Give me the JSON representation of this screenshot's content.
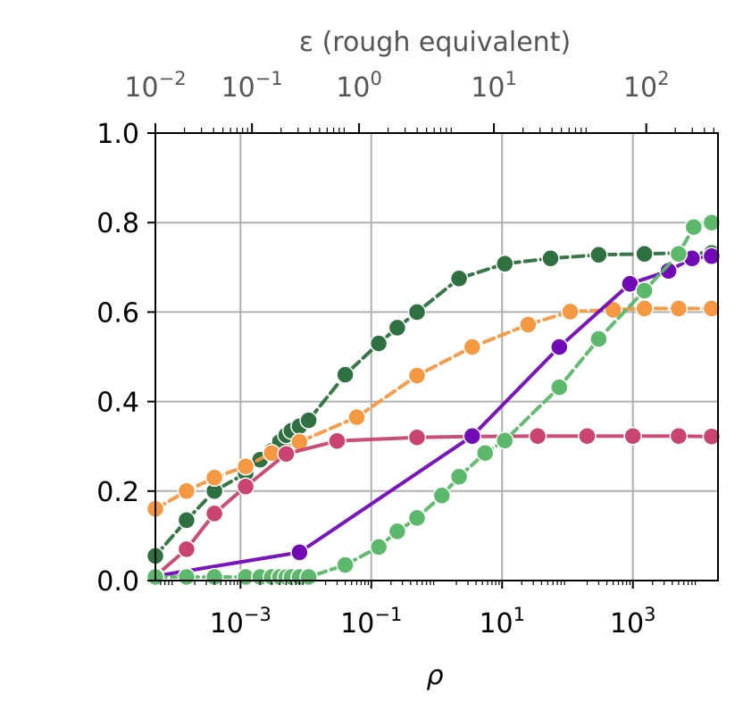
{
  "chart_data": {
    "type": "line",
    "xlabel": "ρ",
    "top_xlabel": "ε (rough equivalent)",
    "ylabel": "",
    "x_scale": "log",
    "xlim": [
      5e-05,
      20000
    ],
    "ylim": [
      0,
      1
    ],
    "x_ticks": [
      {
        "value": 0.001,
        "base": "10",
        "exp": "−3"
      },
      {
        "value": 0.1,
        "base": "10",
        "exp": "−1"
      },
      {
        "value": 10,
        "base": "10",
        "exp": "1"
      },
      {
        "value": 1000,
        "base": "10",
        "exp": "3"
      }
    ],
    "y_ticks": [
      {
        "value": 0.0,
        "label": "0.0"
      },
      {
        "value": 0.2,
        "label": "0.2"
      },
      {
        "value": 0.4,
        "label": "0.4"
      },
      {
        "value": 0.6,
        "label": "0.6"
      },
      {
        "value": 0.8,
        "label": "0.8"
      },
      {
        "value": 1.0,
        "label": "1.0"
      }
    ],
    "top_ticks": [
      {
        "value": 5e-05,
        "base": "10",
        "exp": "−2"
      },
      {
        "value": 0.0015,
        "base": "10",
        "exp": "−1"
      },
      {
        "value": 0.065,
        "base": "10",
        "exp": "0"
      },
      {
        "value": 7.5,
        "base": "10",
        "exp": "1"
      },
      {
        "value": 1600,
        "base": "10",
        "exp": "2"
      }
    ],
    "grid": true,
    "series": [
      {
        "color": "#2e7040",
        "line_style": "dashed",
        "points": [
          [
            5e-05,
            0.055
          ],
          [
            0.00015,
            0.135
          ],
          [
            0.0004,
            0.2
          ],
          [
            0.0012,
            0.24
          ],
          [
            0.002,
            0.27
          ],
          [
            0.003,
            0.29
          ],
          [
            0.004,
            0.31
          ],
          [
            0.005,
            0.325
          ],
          [
            0.006,
            0.335
          ],
          [
            0.008,
            0.345
          ],
          [
            0.011,
            0.358
          ],
          [
            0.04,
            0.46
          ],
          [
            0.13,
            0.53
          ],
          [
            0.25,
            0.565
          ],
          [
            0.5,
            0.6
          ],
          [
            2.2,
            0.675
          ],
          [
            11,
            0.708
          ],
          [
            55,
            0.72
          ],
          [
            300,
            0.728
          ],
          [
            1500,
            0.73
          ],
          [
            5000,
            0.732
          ],
          [
            16000,
            0.732
          ]
        ]
      },
      {
        "color": "#f59842",
        "line_style": "dashed",
        "points": [
          [
            5e-05,
            0.16
          ],
          [
            0.00015,
            0.2
          ],
          [
            0.0004,
            0.23
          ],
          [
            0.0012,
            0.255
          ],
          [
            0.003,
            0.285
          ],
          [
            0.008,
            0.31
          ],
          [
            0.06,
            0.365
          ],
          [
            0.5,
            0.458
          ],
          [
            3.5,
            0.522
          ],
          [
            25,
            0.572
          ],
          [
            110,
            0.601
          ],
          [
            500,
            0.605
          ],
          [
            1500,
            0.608
          ],
          [
            5000,
            0.608
          ],
          [
            16000,
            0.608
          ]
        ]
      },
      {
        "color": "#c94470",
        "line_style": "solid",
        "points": [
          [
            5e-05,
            0.01
          ],
          [
            0.00015,
            0.07
          ],
          [
            0.0004,
            0.15
          ],
          [
            0.0012,
            0.21
          ],
          [
            0.005,
            0.283
          ],
          [
            0.03,
            0.312
          ],
          [
            0.5,
            0.32
          ],
          [
            3.5,
            0.322
          ],
          [
            35,
            0.323
          ],
          [
            200,
            0.323
          ],
          [
            1000,
            0.323
          ],
          [
            5000,
            0.323
          ],
          [
            16000,
            0.322
          ]
        ]
      },
      {
        "color": "#7209b7",
        "line_style": "solid",
        "points": [
          [
            5e-05,
            0.01
          ],
          [
            0.008,
            0.063
          ],
          [
            3.5,
            0.323
          ],
          [
            75,
            0.522
          ],
          [
            900,
            0.663
          ],
          [
            3500,
            0.692
          ],
          [
            8000,
            0.72
          ],
          [
            16000,
            0.725
          ]
        ]
      },
      {
        "color": "#5cb86a",
        "line_style": "dashed",
        "points": [
          [
            5e-05,
            0.008
          ],
          [
            0.00015,
            0.008
          ],
          [
            0.0004,
            0.008
          ],
          [
            0.0012,
            0.008
          ],
          [
            0.002,
            0.008
          ],
          [
            0.003,
            0.008
          ],
          [
            0.004,
            0.008
          ],
          [
            0.005,
            0.008
          ],
          [
            0.006,
            0.008
          ],
          [
            0.008,
            0.008
          ],
          [
            0.011,
            0.008
          ],
          [
            0.04,
            0.035
          ],
          [
            0.13,
            0.075
          ],
          [
            0.25,
            0.11
          ],
          [
            0.5,
            0.14
          ],
          [
            1.2,
            0.19
          ],
          [
            2.2,
            0.232
          ],
          [
            5.5,
            0.285
          ],
          [
            11,
            0.313
          ],
          [
            75,
            0.432
          ],
          [
            300,
            0.54
          ],
          [
            1500,
            0.648
          ],
          [
            5000,
            0.73
          ],
          [
            8500,
            0.79
          ],
          [
            16000,
            0.8
          ]
        ]
      }
    ]
  }
}
